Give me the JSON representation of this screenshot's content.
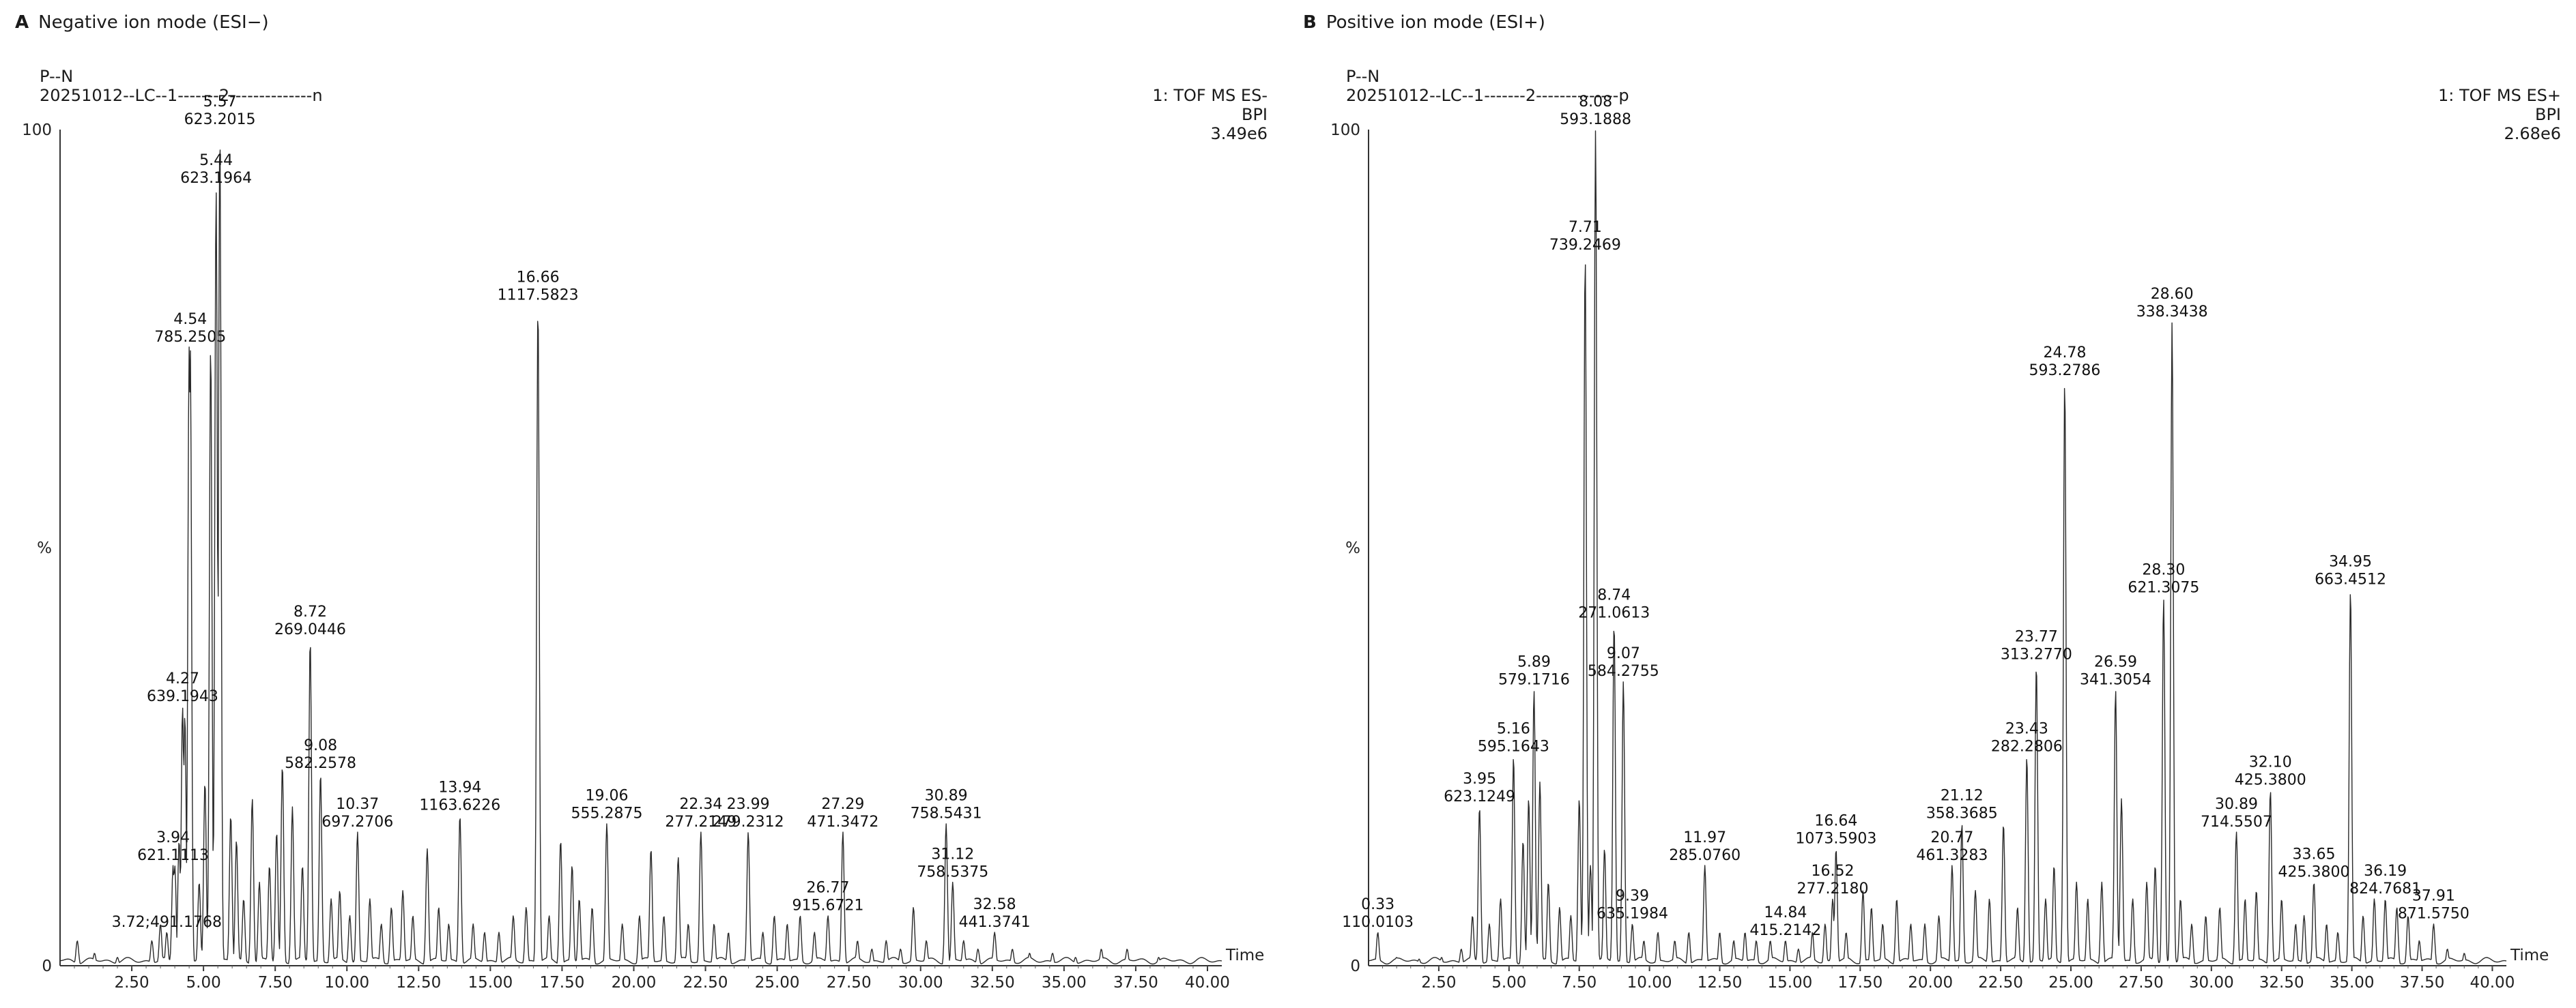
{
  "chart_data": [
    {
      "type": "line",
      "panel_letter": "A",
      "title": "Negative ion mode (ESI−)",
      "sample_line1": "P--N",
      "sample_line2": "20251012--LC--1-------2--------------n",
      "function_line": "1: TOF MS ES-",
      "trace_type": "BPI",
      "intensity_max": "3.49e6",
      "xlabel": "Time",
      "ylabel": "%",
      "xlim": [
        0,
        40.5
      ],
      "ylim": [
        0,
        100
      ],
      "x_ticks": [
        "2.50",
        "5.00",
        "7.50",
        "10.00",
        "12.50",
        "15.00",
        "17.50",
        "20.00",
        "22.50",
        "25.00",
        "27.50",
        "30.00",
        "32.50",
        "35.00",
        "37.50",
        "40.00"
      ],
      "y_ticks": [
        "0",
        "%",
        "100"
      ],
      "labeled_peaks": [
        {
          "rt": "5.57",
          "mz": "623.2015",
          "x": 5.57,
          "y": 100
        },
        {
          "rt": "5.44",
          "mz": "623.1964",
          "x": 5.44,
          "y": 93
        },
        {
          "rt": "4.54",
          "mz": "785.2505",
          "x": 4.54,
          "y": 74
        },
        {
          "rt": "16.66",
          "mz": "1117.5823",
          "x": 16.66,
          "y": 79
        },
        {
          "rt": "8.72",
          "mz": "269.0446",
          "x": 8.72,
          "y": 39
        },
        {
          "rt": "4.27",
          "mz": "639.1943",
          "x": 4.27,
          "y": 31
        },
        {
          "rt": "9.08",
          "mz": "582.2578",
          "x": 9.08,
          "y": 23
        },
        {
          "rt": "10.37",
          "mz": "697.2706",
          "x": 10.37,
          "y": 16
        },
        {
          "rt": "13.94",
          "mz": "1163.6226",
          "x": 13.94,
          "y": 18
        },
        {
          "rt": "3.94",
          "mz": "621.1113",
          "x": 3.94,
          "y": 12
        },
        {
          "rt": "3.72",
          "mz": "491.1768",
          "x": 3.72,
          "y": 4,
          "inline": true
        },
        {
          "rt": "19.06",
          "mz": "555.2875",
          "x": 19.06,
          "y": 17
        },
        {
          "rt": "22.34",
          "mz": "277.2149",
          "x": 22.34,
          "y": 16
        },
        {
          "rt": "23.99",
          "mz": "279.2312",
          "x": 23.99,
          "y": 16
        },
        {
          "rt": "27.29",
          "mz": "471.3472",
          "x": 27.29,
          "y": 16
        },
        {
          "rt": "26.77",
          "mz": "915.6721",
          "x": 26.77,
          "y": 6
        },
        {
          "rt": "30.89",
          "mz": "758.5431",
          "x": 30.89,
          "y": 17
        },
        {
          "rt": "31.12",
          "mz": "758.5375",
          "x": 31.12,
          "y": 10
        },
        {
          "rt": "32.58",
          "mz": "441.3741",
          "x": 32.58,
          "y": 4
        }
      ],
      "minor_peaks": [
        [
          0.6,
          3
        ],
        [
          1.2,
          1.5
        ],
        [
          2.0,
          1
        ],
        [
          3.2,
          3
        ],
        [
          3.5,
          5
        ],
        [
          4.0,
          12
        ],
        [
          4.15,
          15
        ],
        [
          4.35,
          30
        ],
        [
          4.5,
          74
        ],
        [
          4.85,
          10
        ],
        [
          5.05,
          22
        ],
        [
          5.25,
          74
        ],
        [
          5.44,
          93
        ],
        [
          5.57,
          100
        ],
        [
          5.95,
          18
        ],
        [
          6.15,
          15
        ],
        [
          6.4,
          8
        ],
        [
          6.7,
          20
        ],
        [
          6.95,
          10
        ],
        [
          7.3,
          12
        ],
        [
          7.55,
          16
        ],
        [
          7.75,
          24
        ],
        [
          8.1,
          19
        ],
        [
          8.45,
          12
        ],
        [
          8.72,
          39
        ],
        [
          9.08,
          23
        ],
        [
          9.45,
          8
        ],
        [
          9.75,
          9
        ],
        [
          10.1,
          6
        ],
        [
          10.37,
          16
        ],
        [
          10.8,
          8
        ],
        [
          11.2,
          5
        ],
        [
          11.55,
          7
        ],
        [
          11.95,
          9
        ],
        [
          12.3,
          6
        ],
        [
          12.8,
          14
        ],
        [
          13.2,
          7
        ],
        [
          13.55,
          5
        ],
        [
          13.94,
          18
        ],
        [
          14.4,
          5
        ],
        [
          14.8,
          4
        ],
        [
          15.3,
          4
        ],
        [
          15.8,
          6
        ],
        [
          16.25,
          7
        ],
        [
          16.66,
          79
        ],
        [
          17.05,
          6
        ],
        [
          17.45,
          15
        ],
        [
          17.85,
          12
        ],
        [
          18.1,
          8
        ],
        [
          18.55,
          7
        ],
        [
          19.06,
          17
        ],
        [
          19.6,
          5
        ],
        [
          20.2,
          6
        ],
        [
          20.6,
          14
        ],
        [
          21.05,
          6
        ],
        [
          21.55,
          13
        ],
        [
          21.9,
          5
        ],
        [
          22.34,
          16
        ],
        [
          22.8,
          5
        ],
        [
          23.3,
          4
        ],
        [
          23.99,
          16
        ],
        [
          24.5,
          4
        ],
        [
          24.9,
          6
        ],
        [
          25.35,
          5
        ],
        [
          25.8,
          6
        ],
        [
          26.3,
          4
        ],
        [
          26.77,
          6
        ],
        [
          27.29,
          16
        ],
        [
          27.8,
          3
        ],
        [
          28.3,
          2
        ],
        [
          28.8,
          3
        ],
        [
          29.3,
          2
        ],
        [
          29.75,
          7
        ],
        [
          30.2,
          3
        ],
        [
          30.89,
          17
        ],
        [
          31.12,
          10
        ],
        [
          31.5,
          3
        ],
        [
          32.0,
          2
        ],
        [
          32.58,
          4
        ],
        [
          33.2,
          2
        ],
        [
          33.8,
          1.5
        ],
        [
          34.6,
          1.5
        ],
        [
          35.4,
          1
        ],
        [
          36.3,
          2
        ],
        [
          37.2,
          2
        ],
        [
          38.3,
          1
        ]
      ]
    },
    {
      "type": "line",
      "panel_letter": "B",
      "title": "Positive ion mode (ESI+)",
      "sample_line1": "P--N",
      "sample_line2": "20251012--LC--1-------2--------------p",
      "function_line": "1: TOF MS ES+",
      "trace_type": "BPI",
      "intensity_max": "2.68e6",
      "xlabel": "Time",
      "ylabel": "%",
      "xlim": [
        0,
        40.5
      ],
      "ylim": [
        0,
        100
      ],
      "x_ticks": [
        "2.50",
        "5.00",
        "7.50",
        "10.00",
        "12.50",
        "15.00",
        "17.50",
        "20.00",
        "22.50",
        "25.00",
        "27.50",
        "30.00",
        "32.50",
        "35.00",
        "37.50",
        "40.00"
      ],
      "y_ticks": [
        "0",
        "%",
        "100"
      ],
      "labeled_peaks": [
        {
          "rt": "8.08",
          "mz": "593.1888",
          "x": 8.08,
          "y": 100
        },
        {
          "rt": "7.71",
          "mz": "739.2469",
          "x": 7.71,
          "y": 85
        },
        {
          "rt": "28.60",
          "mz": "338.3438",
          "x": 28.6,
          "y": 77
        },
        {
          "rt": "24.78",
          "mz": "593.2786",
          "x": 24.78,
          "y": 70
        },
        {
          "rt": "34.95",
          "mz": "663.4512",
          "x": 34.95,
          "y": 45
        },
        {
          "rt": "28.30",
          "mz": "621.3075",
          "x": 28.3,
          "y": 44
        },
        {
          "rt": "8.74",
          "mz": "271.0613",
          "x": 8.74,
          "y": 41
        },
        {
          "rt": "9.07",
          "mz": "584.2755",
          "x": 9.07,
          "y": 34
        },
        {
          "rt": "23.77",
          "mz": "313.2770",
          "x": 23.77,
          "y": 36
        },
        {
          "rt": "26.59",
          "mz": "341.3054",
          "x": 26.59,
          "y": 33
        },
        {
          "rt": "5.89",
          "mz": "579.1716",
          "x": 5.89,
          "y": 33
        },
        {
          "rt": "5.16",
          "mz": "595.1643",
          "x": 5.16,
          "y": 25
        },
        {
          "rt": "23.43",
          "mz": "282.2806",
          "x": 23.43,
          "y": 25
        },
        {
          "rt": "3.95",
          "mz": "623.1249",
          "x": 3.95,
          "y": 19
        },
        {
          "rt": "21.12",
          "mz": "358.3685",
          "x": 21.12,
          "y": 17
        },
        {
          "rt": "32.10",
          "mz": "425.3800",
          "x": 32.1,
          "y": 21
        },
        {
          "rt": "30.89",
          "mz": "714.5507",
          "x": 30.89,
          "y": 16
        },
        {
          "rt": "20.77",
          "mz": "461.3283",
          "x": 20.77,
          "y": 12
        },
        {
          "rt": "11.97",
          "mz": "285.0760",
          "x": 11.97,
          "y": 12
        },
        {
          "rt": "16.64",
          "mz": "1073.5903",
          "x": 16.64,
          "y": 14
        },
        {
          "rt": "33.65",
          "mz": "425.3800",
          "x": 33.65,
          "y": 10
        },
        {
          "rt": "16.52",
          "mz": "277.2180",
          "x": 16.52,
          "y": 8
        },
        {
          "rt": "9.39",
          "mz": "635.1984",
          "x": 9.39,
          "y": 5
        },
        {
          "rt": "14.84",
          "mz": "415.2142",
          "x": 14.84,
          "y": 3
        },
        {
          "rt": "36.19",
          "mz": "824.7681",
          "x": 36.19,
          "y": 8
        },
        {
          "rt": "37.91",
          "mz": "871.5750",
          "x": 37.91,
          "y": 5
        },
        {
          "rt": "0.33",
          "mz": "110.0103",
          "x": 0.33,
          "y": 4
        }
      ],
      "minor_peaks": [
        [
          0.33,
          4
        ],
        [
          1.0,
          1
        ],
        [
          1.8,
          0.8
        ],
        [
          2.6,
          1
        ],
        [
          3.3,
          2
        ],
        [
          3.7,
          6
        ],
        [
          3.95,
          19
        ],
        [
          4.3,
          5
        ],
        [
          4.7,
          8
        ],
        [
          5.16,
          25
        ],
        [
          5.5,
          15
        ],
        [
          5.7,
          20
        ],
        [
          5.89,
          33
        ],
        [
          6.1,
          22
        ],
        [
          6.4,
          10
        ],
        [
          6.8,
          7
        ],
        [
          7.2,
          6
        ],
        [
          7.5,
          20
        ],
        [
          7.71,
          85
        ],
        [
          7.9,
          12
        ],
        [
          8.08,
          100
        ],
        [
          8.4,
          14
        ],
        [
          8.74,
          41
        ],
        [
          9.07,
          34
        ],
        [
          9.39,
          5
        ],
        [
          9.8,
          3
        ],
        [
          10.3,
          4
        ],
        [
          10.9,
          3
        ],
        [
          11.4,
          4
        ],
        [
          11.97,
          12
        ],
        [
          12.5,
          4
        ],
        [
          13.0,
          3
        ],
        [
          13.4,
          4
        ],
        [
          13.8,
          3
        ],
        [
          14.3,
          3
        ],
        [
          14.84,
          3
        ],
        [
          15.3,
          2
        ],
        [
          15.8,
          4
        ],
        [
          16.25,
          5
        ],
        [
          16.52,
          8
        ],
        [
          16.64,
          14
        ],
        [
          17.0,
          4
        ],
        [
          17.6,
          9
        ],
        [
          17.9,
          7
        ],
        [
          18.3,
          5
        ],
        [
          18.8,
          8
        ],
        [
          19.3,
          5
        ],
        [
          19.8,
          5
        ],
        [
          20.3,
          6
        ],
        [
          20.77,
          12
        ],
        [
          21.12,
          17
        ],
        [
          21.6,
          9
        ],
        [
          22.1,
          8
        ],
        [
          22.6,
          17
        ],
        [
          23.1,
          7
        ],
        [
          23.43,
          25
        ],
        [
          23.77,
          36
        ],
        [
          24.1,
          8
        ],
        [
          24.4,
          12
        ],
        [
          24.78,
          70
        ],
        [
          25.2,
          10
        ],
        [
          25.6,
          8
        ],
        [
          26.1,
          10
        ],
        [
          26.59,
          33
        ],
        [
          26.8,
          20
        ],
        [
          27.2,
          8
        ],
        [
          27.7,
          10
        ],
        [
          28.0,
          12
        ],
        [
          28.3,
          44
        ],
        [
          28.6,
          77
        ],
        [
          28.9,
          8
        ],
        [
          29.3,
          5
        ],
        [
          29.8,
          6
        ],
        [
          30.3,
          7
        ],
        [
          30.89,
          16
        ],
        [
          31.2,
          8
        ],
        [
          31.6,
          9
        ],
        [
          32.1,
          21
        ],
        [
          32.5,
          8
        ],
        [
          33.0,
          5
        ],
        [
          33.3,
          6
        ],
        [
          33.65,
          10
        ],
        [
          34.1,
          5
        ],
        [
          34.5,
          4
        ],
        [
          34.95,
          45
        ],
        [
          35.4,
          6
        ],
        [
          35.8,
          8
        ],
        [
          36.19,
          8
        ],
        [
          36.6,
          7
        ],
        [
          37.0,
          6
        ],
        [
          37.4,
          3
        ],
        [
          37.91,
          5
        ],
        [
          38.4,
          2
        ],
        [
          39.0,
          1.5
        ]
      ]
    }
  ]
}
